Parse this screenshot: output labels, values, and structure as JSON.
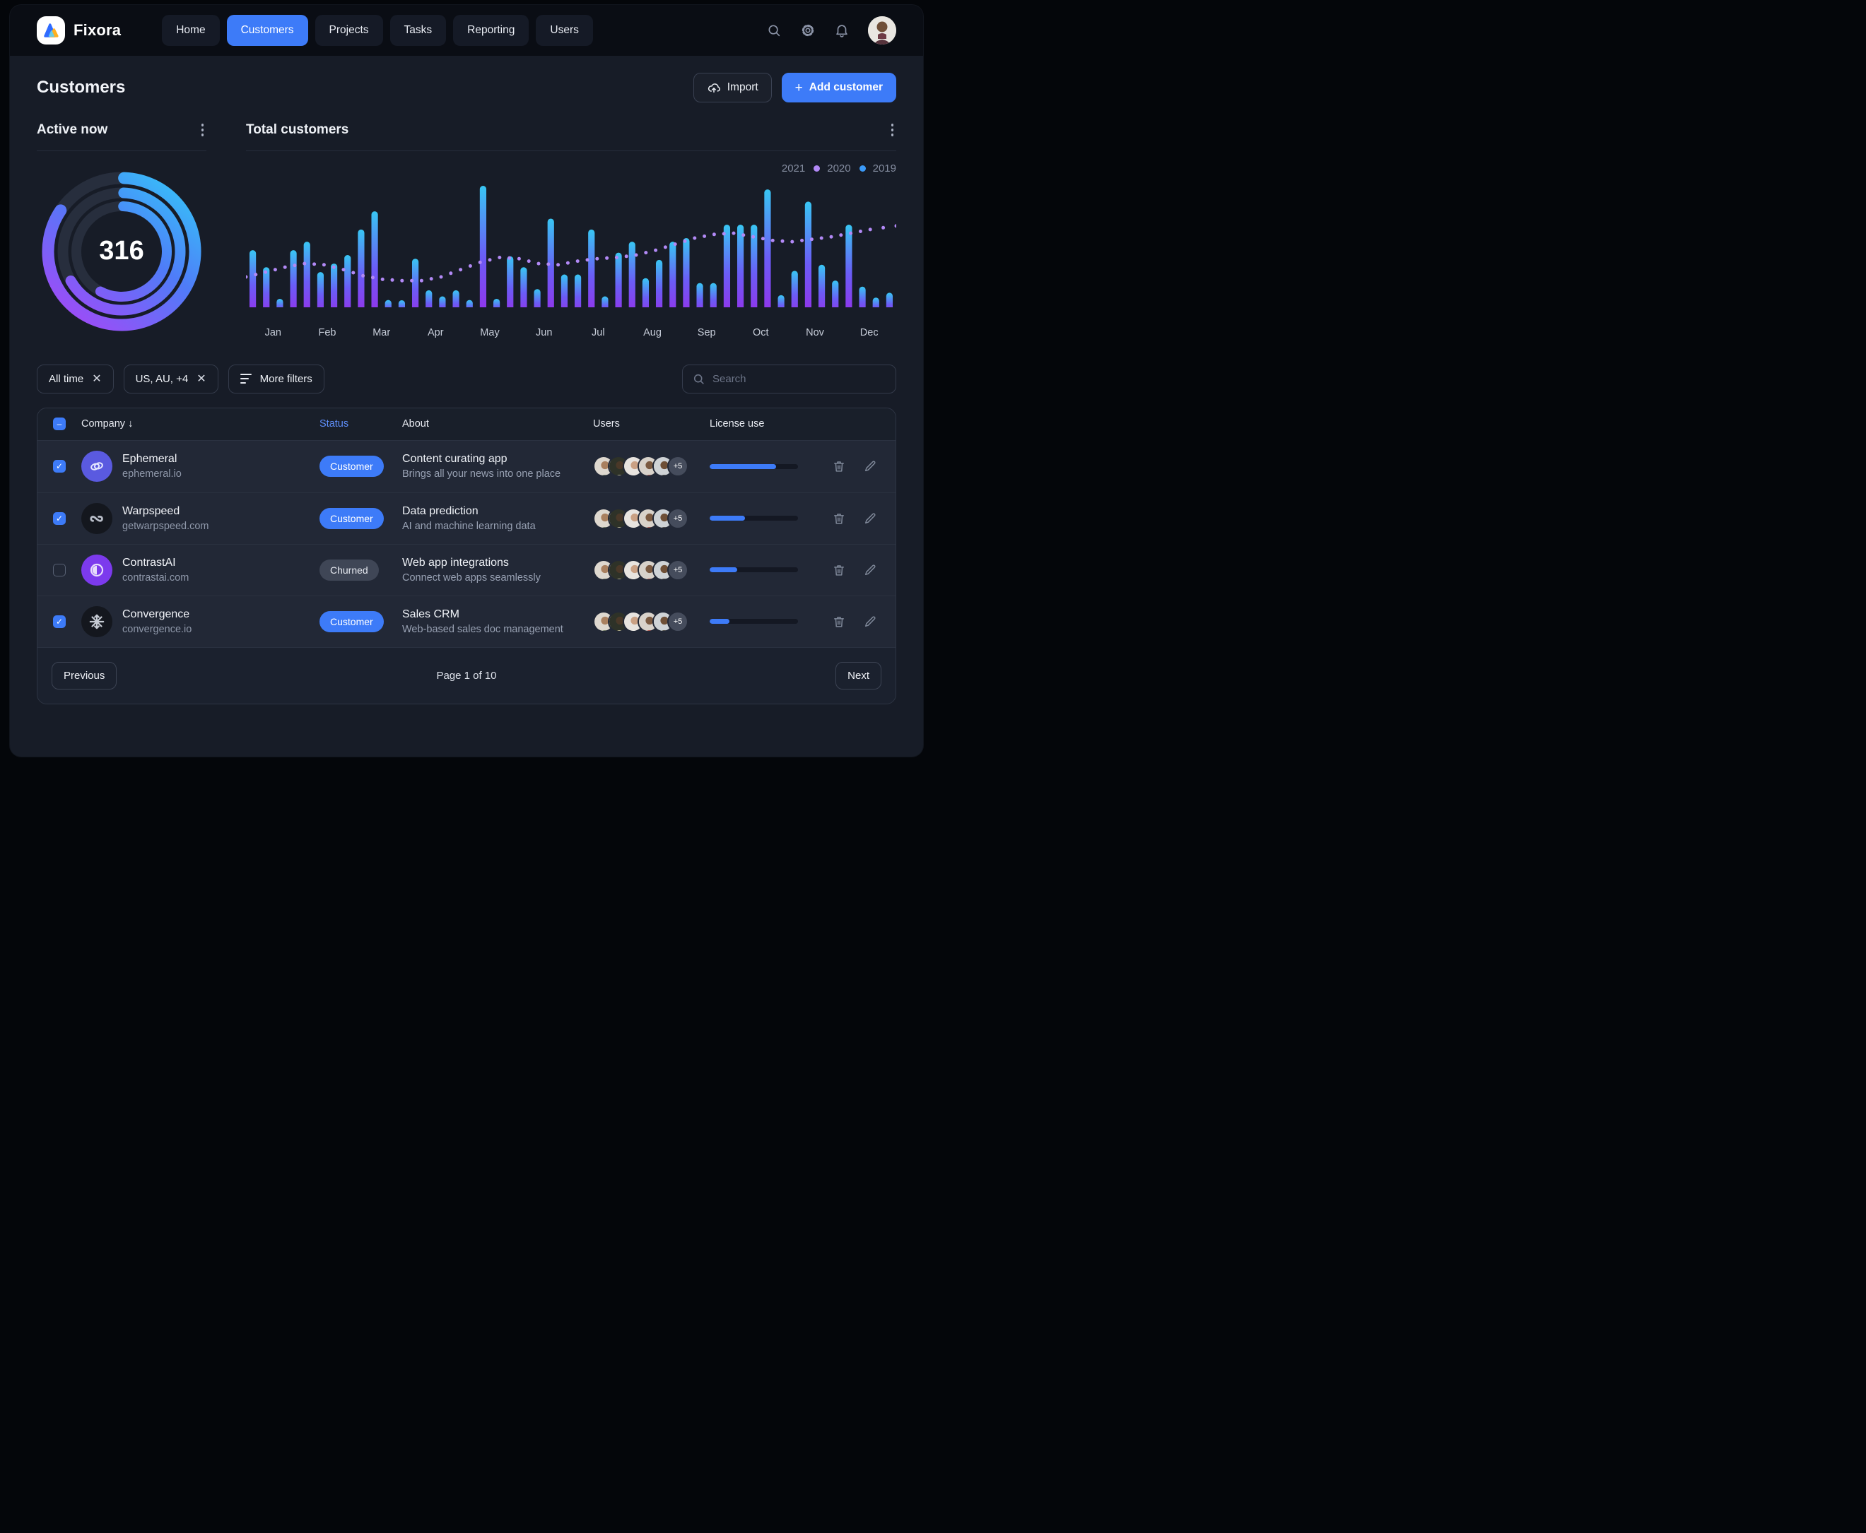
{
  "brand": {
    "name": "Fixora"
  },
  "nav": {
    "items": [
      {
        "label": "Home",
        "active": false
      },
      {
        "label": "Customers",
        "active": true
      },
      {
        "label": "Projects",
        "active": false
      },
      {
        "label": "Tasks",
        "active": false
      },
      {
        "label": "Reporting",
        "active": false
      },
      {
        "label": "Users",
        "active": false
      }
    ]
  },
  "header": {
    "title": "Customers",
    "import_label": "Import",
    "add_label": "Add customer"
  },
  "active_now": {
    "title": "Active now",
    "value": "316",
    "rings": [
      {
        "sweep_deg": 302
      },
      {
        "sweep_deg": 238
      },
      {
        "sweep_deg": 206
      }
    ]
  },
  "total_customers": {
    "title": "Total customers",
    "legend": [
      {
        "label": "2021",
        "dot": null
      },
      {
        "label": "2020",
        "dot": "#b289f6"
      },
      {
        "label": "2019",
        "dot": "#3b9af8"
      }
    ]
  },
  "chart_data": {
    "type": "bar",
    "title": "Total customers",
    "months": [
      "Jan",
      "Feb",
      "Mar",
      "Apr",
      "May",
      "Jun",
      "Jul",
      "Aug",
      "Sep",
      "Oct",
      "Nov",
      "Dec"
    ],
    "bars_per_month": 4,
    "bar_series_label": "2021",
    "values_pct": [
      47,
      33,
      7,
      47,
      54,
      29,
      36,
      43,
      64,
      79,
      6,
      5,
      40,
      14,
      9,
      14,
      6,
      100,
      7,
      42,
      33,
      15,
      73,
      27,
      27,
      64,
      9,
      45,
      54,
      24,
      39,
      54,
      57,
      20,
      20,
      68,
      68,
      68,
      97,
      10,
      30,
      87,
      35,
      22,
      68,
      17,
      8,
      12
    ],
    "trend_series_label": "2020",
    "trend_pct": [
      [
        0,
        25
      ],
      [
        3,
        29
      ],
      [
        6,
        33
      ],
      [
        9,
        36
      ],
      [
        12,
        35
      ],
      [
        15,
        31
      ],
      [
        18,
        26
      ],
      [
        21,
        23
      ],
      [
        24,
        22
      ],
      [
        27,
        22
      ],
      [
        30,
        25
      ],
      [
        33,
        31
      ],
      [
        36,
        37
      ],
      [
        39,
        41
      ],
      [
        42,
        40
      ],
      [
        45,
        36
      ],
      [
        48,
        35
      ],
      [
        51,
        38
      ],
      [
        54,
        40
      ],
      [
        57,
        41
      ],
      [
        60,
        43
      ],
      [
        63,
        47
      ],
      [
        66,
        52
      ],
      [
        69,
        57
      ],
      [
        72,
        60
      ],
      [
        75,
        61
      ],
      [
        78,
        58
      ],
      [
        81,
        55
      ],
      [
        84,
        54
      ],
      [
        87,
        56
      ],
      [
        90,
        58
      ],
      [
        93,
        61
      ],
      [
        96,
        64
      ],
      [
        100,
        67
      ]
    ],
    "legend_entries": [
      "2021",
      "2020",
      "2019"
    ],
    "ylim": [
      0,
      100
    ],
    "grid": false,
    "legend_position": "top-right"
  },
  "colors": {
    "accent": "#3d7bf8",
    "bar_gradient": [
      "#38c6f3",
      "#6b5cf6",
      "#9333ea"
    ],
    "ring_gradient": [
      "#38bdf8",
      "#4f7cf8",
      "#9b4df7"
    ],
    "ring_track": "#272e3d",
    "trend_dot": "#b289f6"
  },
  "filters": [
    {
      "label": "All time",
      "removable": true
    },
    {
      "label": "US, AU, +4",
      "removable": true
    },
    {
      "label": "More filters",
      "removable": false
    }
  ],
  "search": {
    "placeholder": "Search"
  },
  "table": {
    "columns": {
      "company": "Company",
      "status": "Status",
      "about": "About",
      "users": "Users",
      "license": "License use"
    },
    "header_checkbox": "indeterminate",
    "rows": [
      {
        "name": "Ephemeral",
        "domain": "ephemeral.io",
        "checked": true,
        "logo": "chain-links",
        "logo_bg": "#5a5ae0",
        "status": "Customer",
        "status_type": "customer",
        "about_title": "Content curating app",
        "about_sub": "Brings all your news into one place",
        "extra_users": "+5",
        "license_pct": 75
      },
      {
        "name": "Warpspeed",
        "domain": "getwarpspeed.com",
        "checked": true,
        "logo": "open-loop",
        "logo_bg": "#14171e",
        "status": "Customer",
        "status_type": "customer",
        "about_title": "Data prediction",
        "about_sub": "AI and machine learning data",
        "extra_users": "+5",
        "license_pct": 40
      },
      {
        "name": "ContrastAI",
        "domain": "contrastai.com",
        "checked": false,
        "logo": "contrast-half",
        "logo_bg": "#7c3aed",
        "status": "Churned",
        "status_type": "churned",
        "about_title": "Web app integrations",
        "about_sub": "Connect web apps seamlessly",
        "extra_users": "+5",
        "license_pct": 31
      },
      {
        "name": "Convergence",
        "domain": "convergence.io",
        "checked": true,
        "logo": "converge-asterisk",
        "logo_bg": "#14171e",
        "status": "Customer",
        "status_type": "customer",
        "about_title": "Sales CRM",
        "about_sub": "Web-based sales doc management",
        "extra_users": "+5",
        "license_pct": 22
      }
    ],
    "avatar_palette": [
      {
        "bg": "#ded8cf",
        "head": "#a9805f",
        "body": "#5d6b52"
      },
      {
        "bg": "#2e3228",
        "head": "#4a3828",
        "body": "#cfc9a5"
      },
      {
        "bg": "#e8e4df",
        "head": "#caa184",
        "body": "#f0ede7"
      },
      {
        "bg": "#d8d2ca",
        "head": "#7b5a41",
        "body": "#a8433b"
      },
      {
        "bg": "#cfd3d6",
        "head": "#6e4f36",
        "body": "#3d3a33"
      }
    ]
  },
  "pagination": {
    "previous": "Previous",
    "status": "Page 1 of 10",
    "next": "Next"
  }
}
